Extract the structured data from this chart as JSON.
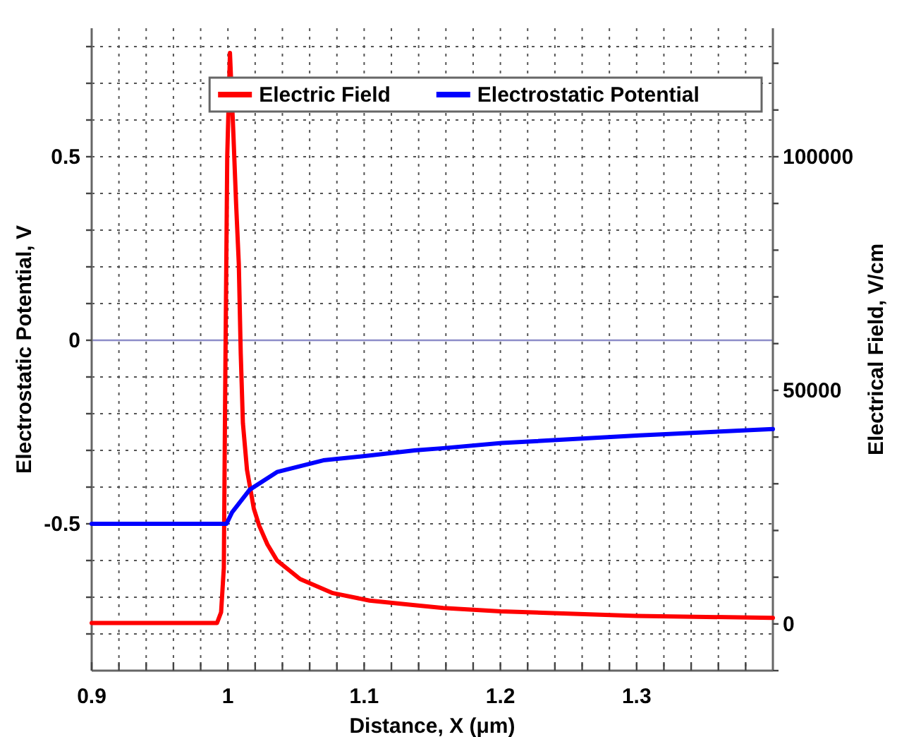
{
  "chart_data": {
    "type": "line",
    "xlabel": "Distance, X (μm)",
    "ylabel": "Electrostatic Potential, V",
    "y2label": "Electrical Field, V/cm",
    "xlim": [
      0.9,
      1.4
    ],
    "ylim": [
      -0.9,
      0.85
    ],
    "y2lim": [
      -10000,
      127500
    ],
    "xticks": [
      0.9,
      {
        "value": 0.92,
        "label": null
      },
      {
        "value": 0.94,
        "label": null
      },
      {
        "value": 0.96,
        "label": null
      },
      {
        "value": 0.98,
        "label": null
      },
      1,
      {
        "value": 1.02,
        "label": null
      },
      {
        "value": 1.04,
        "label": null
      },
      {
        "value": 1.06,
        "label": null
      },
      {
        "value": 1.08,
        "label": null
      },
      1.1,
      {
        "value": 1.12,
        "label": null
      },
      {
        "value": 1.14,
        "label": null
      },
      {
        "value": 1.16,
        "label": null
      },
      {
        "value": 1.18,
        "label": null
      },
      1.2,
      {
        "value": 1.22,
        "label": null
      },
      {
        "value": 1.24,
        "label": null
      },
      {
        "value": 1.26,
        "label": null
      },
      {
        "value": 1.28,
        "label": null
      },
      1.3,
      {
        "value": 1.32,
        "label": null
      },
      {
        "value": 1.34,
        "label": null
      },
      {
        "value": 1.36,
        "label": null
      },
      {
        "value": 1.38,
        "label": null
      }
    ],
    "yticks": [
      {
        "value": -0.8,
        "label": null
      },
      {
        "value": -0.7,
        "label": null
      },
      {
        "value": -0.6,
        "label": null
      },
      -0.5,
      {
        "value": -0.4,
        "label": null
      },
      {
        "value": -0.3,
        "label": null
      },
      {
        "value": -0.2,
        "label": null
      },
      {
        "value": -0.1,
        "label": null
      },
      0,
      {
        "value": 0.1,
        "label": null
      },
      {
        "value": 0.2,
        "label": null
      },
      {
        "value": 0.3,
        "label": null
      },
      {
        "value": 0.4,
        "label": null
      },
      0.5,
      {
        "value": 0.6,
        "label": null
      },
      {
        "value": 0.7,
        "label": null
      },
      {
        "value": 0.8,
        "label": null
      }
    ],
    "y2ticks": [
      {
        "value": -10000,
        "label": null
      },
      0,
      {
        "value": 10000,
        "label": null
      },
      {
        "value": 20000,
        "label": null
      },
      {
        "value": 30000,
        "label": null
      },
      {
        "value": 40000,
        "label": null
      },
      50000,
      {
        "value": 60000,
        "label": null
      },
      {
        "value": 70000,
        "label": null
      },
      {
        "value": 80000,
        "label": null
      },
      {
        "value": 90000,
        "label": null
      },
      100000,
      {
        "value": 110000,
        "label": null
      },
      {
        "value": 120000,
        "label": null
      }
    ],
    "grid": true,
    "legend": "top right",
    "line_style": "solid",
    "marker": "none",
    "ref_lines": [
      {
        "axis": "y",
        "value": 0,
        "color": "#8c8cc8"
      }
    ],
    "series": [
      {
        "name": "Electric Field",
        "color": "#ff0000",
        "axis": "y2",
        "x": [
          0.9,
          0.992,
          0.995,
          0.997,
          0.998,
          0.9995,
          1.0015,
          1.004,
          1.006,
          1.008,
          1.0094,
          1.011,
          1.014,
          1.019,
          1.023,
          1.029,
          1.036,
          1.053,
          1.077,
          1.104,
          1.137,
          1.158,
          1.2,
          1.25,
          1.3,
          1.4
        ],
        "values": [
          200,
          200,
          2500,
          12000,
          50000,
          100000,
          122200,
          105000,
          90000,
          77000,
          58000,
          43000,
          33000,
          24700,
          21000,
          17000,
          13600,
          9600,
          6600,
          5000,
          4000,
          3400,
          2700,
          2200,
          1700,
          1300
        ]
      },
      {
        "name": "Electrostatic Potential",
        "color": "#0000ff",
        "axis": "y",
        "x": [
          0.9,
          0.999,
          1.003,
          1.016,
          1.036,
          1.07,
          1.104,
          1.137,
          1.158,
          1.201,
          1.302,
          1.4
        ],
        "values": [
          -0.5,
          -0.5,
          -0.469,
          -0.407,
          -0.359,
          -0.327,
          -0.314,
          -0.3,
          -0.294,
          -0.28,
          -0.259,
          -0.242
        ]
      }
    ]
  }
}
